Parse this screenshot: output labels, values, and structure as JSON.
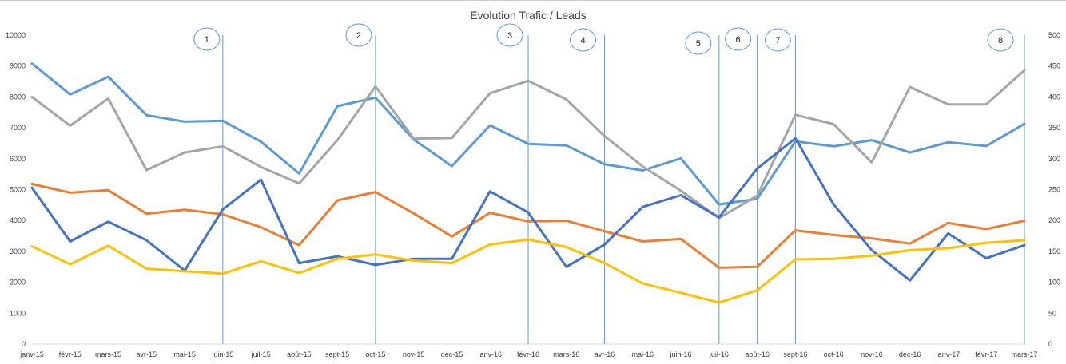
{
  "chart_data": {
    "type": "line",
    "title": "Evolution Trafic / Leads",
    "categories": [
      "janv-15",
      "févr-15",
      "mars-15",
      "avr-15",
      "mai-15",
      "juin-15",
      "juil-15",
      "août-15",
      "sept-15",
      "oct-15",
      "nov-15",
      "déc-15",
      "janv-16",
      "févr-16",
      "mars-16",
      "avr-16",
      "mai-16",
      "juin-16",
      "juil-16",
      "août-16",
      "sept-16",
      "oct-16",
      "nov-16",
      "déc-16",
      "janv-17",
      "févr-17",
      "mars-17"
    ],
    "y_left": {
      "min": 0,
      "max": 10000,
      "step": 1000,
      "ticks": [
        "0",
        "1000",
        "2000",
        "3000",
        "4000",
        "5000",
        "6000",
        "7000",
        "8000",
        "9000",
        "10000"
      ]
    },
    "y_right": {
      "min": 0,
      "max": 500,
      "step": 50,
      "ticks": [
        "0",
        "50",
        "100",
        "150",
        "200",
        "250",
        "300",
        "350",
        "400",
        "450",
        "500"
      ]
    },
    "grid": false,
    "legend": "none",
    "series": [
      {
        "color": "#5b9bd5",
        "axis": "left",
        "values": [
          9080,
          8080,
          8650,
          7410,
          7200,
          7230,
          6550,
          5520,
          7700,
          7980,
          6620,
          5760,
          7080,
          6480,
          6430,
          5820,
          5620,
          6010,
          4520,
          4700,
          6560,
          6400,
          6600,
          6200,
          6530,
          6410,
          7130
        ]
      },
      {
        "color": "#a5a5a5",
        "axis": "left",
        "values": [
          8000,
          7070,
          7950,
          5630,
          6200,
          6400,
          5730,
          5200,
          6600,
          8340,
          6650,
          6670,
          8120,
          8520,
          7920,
          6730,
          5750,
          4960,
          4080,
          4800,
          7420,
          7120,
          5880,
          8320,
          7760,
          7760,
          8860
        ]
      },
      {
        "color": "#ed7d31",
        "axis": "left",
        "values": [
          5180,
          4900,
          4980,
          4220,
          4350,
          4200,
          3780,
          3200,
          4650,
          4920,
          4230,
          3480,
          4250,
          3970,
          3990,
          3650,
          3320,
          3400,
          2470,
          2500,
          3680,
          3530,
          3420,
          3250,
          3920,
          3720,
          3990
        ]
      },
      {
        "color": "#4472c4",
        "axis": "right",
        "values": [
          253,
          166,
          198,
          168,
          119,
          218,
          266,
          131,
          142,
          128,
          138,
          138,
          247,
          213,
          125,
          161,
          222,
          241,
          205,
          284,
          333,
          226,
          152,
          103,
          179,
          139,
          160
        ]
      },
      {
        "color": "#ffc000",
        "axis": "right",
        "values": [
          158,
          129,
          159,
          122,
          118,
          114,
          134,
          115,
          138,
          145,
          135,
          131,
          161,
          169,
          157,
          131,
          98,
          83,
          67,
          87,
          137,
          138,
          143,
          152,
          155,
          164,
          168
        ]
      }
    ],
    "markers": [
      {
        "label": "1",
        "category": "juin-15"
      },
      {
        "label": "2",
        "category": "oct-15"
      },
      {
        "label": "3",
        "category": "févr-16"
      },
      {
        "label": "4",
        "category": "avr-16"
      },
      {
        "label": "5",
        "category": "juil-16"
      },
      {
        "label": "6",
        "category": "août-16"
      },
      {
        "label": "7",
        "category": "sept-16"
      },
      {
        "label": "8",
        "category": "mars-17"
      }
    ]
  }
}
